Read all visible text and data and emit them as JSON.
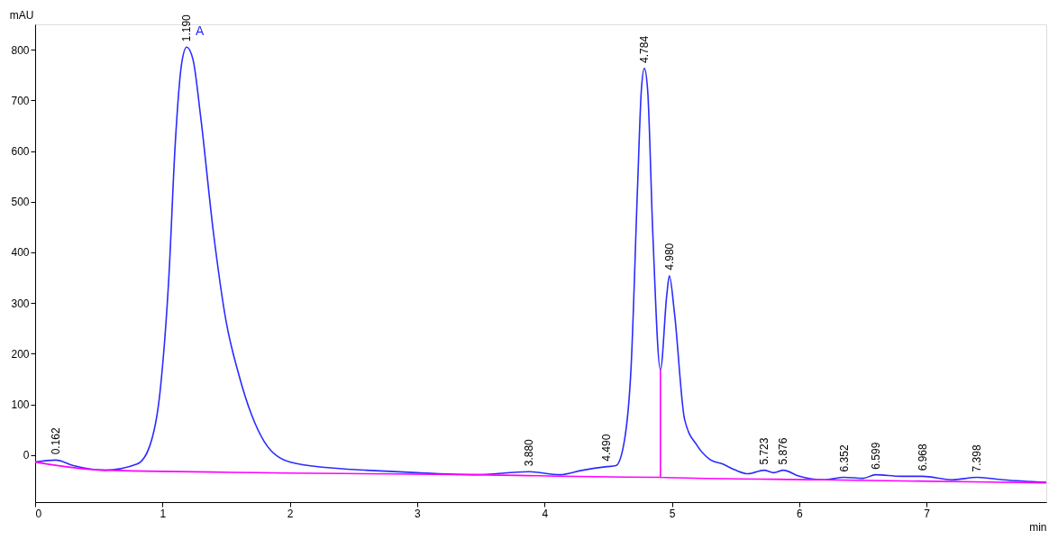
{
  "chart_data": {
    "type": "line",
    "xlabel": "min",
    "ylabel": "mAU",
    "xlim": [
      0,
      7.94
    ],
    "xticks": [
      0,
      1,
      2,
      3,
      4,
      5,
      6,
      7
    ],
    "ylim": [
      -93,
      850
    ],
    "yticks": [
      0,
      100,
      200,
      300,
      400,
      500,
      600,
      700,
      800
    ],
    "grid": false,
    "legend": false,
    "marker": "none",
    "line_style": "solid",
    "series": [
      {
        "color": "#2b2bff",
        "x": [
          0,
          0.162,
          0.3,
          0.55,
          0.8,
          0.9,
          0.98,
          1.05,
          1.1,
          1.15,
          1.19,
          1.24,
          1.3,
          1.4,
          1.5,
          1.6,
          1.7,
          1.8,
          2.0,
          2.3,
          2.6,
          3.0,
          3.45,
          3.88,
          4.12,
          4.3,
          4.49,
          4.56,
          4.62,
          4.68,
          4.73,
          4.76,
          4.784,
          4.81,
          4.85,
          4.91,
          4.96,
          4.98,
          5.02,
          5.1,
          5.2,
          5.3,
          5.4,
          5.5,
          5.6,
          5.723,
          5.8,
          5.876,
          6.0,
          6.2,
          6.352,
          6.5,
          6.599,
          6.8,
          6.968,
          7.2,
          7.398,
          7.6,
          7.94
        ],
        "values": [
          -14,
          -10,
          -21,
          -30,
          -18,
          18,
          123,
          351,
          614,
          772,
          805,
          780,
          667,
          439,
          263,
          158,
          79,
          26,
          -14,
          -25,
          -30,
          -35,
          -39,
          -33,
          -39,
          -30,
          -23,
          -21,
          18,
          175,
          526,
          719,
          763,
          719,
          439,
          168,
          316,
          354,
          281,
          70,
          18,
          -9,
          -18,
          -30,
          -37,
          -30,
          -35,
          -30,
          -42,
          -49,
          -44,
          -46,
          -39,
          -42,
          -42,
          -49,
          -44,
          -49,
          -54
        ]
      },
      {
        "color": "#ff00ff",
        "x": [
          0,
          0.55,
          3.45,
          4.91,
          4.91,
          4.91,
          6.2,
          7.94
        ],
        "values": [
          -14,
          -30,
          -39,
          -44,
          168,
          -44,
          -49,
          -55
        ]
      }
    ],
    "annotations": [
      "A",
      {
        "text": "0.162",
        "x": 0.162,
        "y": -10
      },
      {
        "text": "1.190",
        "x": 1.19,
        "y": 805
      },
      {
        "text": "3.880",
        "x": 3.88,
        "y": -33
      },
      {
        "text": "4.490",
        "x": 4.49,
        "y": -23
      },
      {
        "text": "4.784",
        "x": 4.784,
        "y": 763
      },
      {
        "text": "4.980",
        "x": 4.98,
        "y": 354
      },
      {
        "text": "5.723",
        "x": 5.723,
        "y": -30
      },
      {
        "text": "5.876",
        "x": 5.876,
        "y": -30
      },
      {
        "text": "6.352",
        "x": 6.352,
        "y": -44
      },
      {
        "text": "6.599",
        "x": 6.599,
        "y": -39
      },
      {
        "text": "6.968",
        "x": 6.968,
        "y": -42
      },
      {
        "text": "7.398",
        "x": 7.398,
        "y": -44
      }
    ]
  }
}
